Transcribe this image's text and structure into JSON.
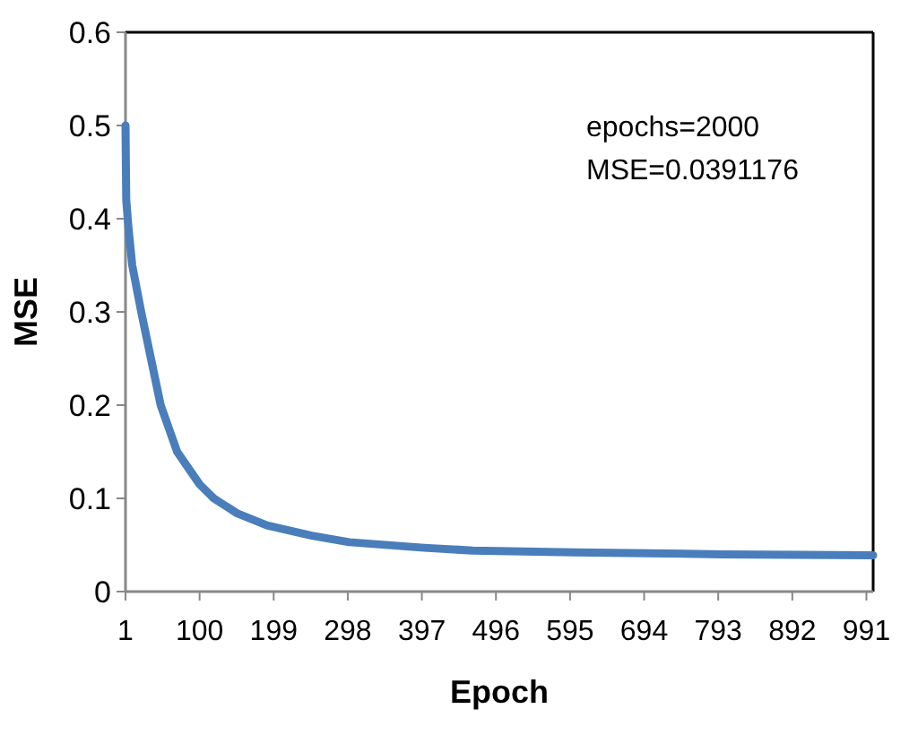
{
  "chart_data": {
    "type": "line",
    "xlabel": "Epoch",
    "ylabel": "MSE",
    "annotations": [
      "epochs=2000\nMSE=0.0391176"
    ],
    "xlim": [
      1,
      1000
    ],
    "xticks": [
      1,
      100,
      199,
      298,
      397,
      496,
      595,
      694,
      793,
      892,
      991
    ],
    "ylim": [
      0,
      0.6
    ],
    "yticks": [
      0,
      0.1,
      0.2,
      0.3,
      0.4,
      0.5,
      0.6
    ],
    "grid": false,
    "marker": "none",
    "line_style": "solid",
    "series": [
      {
        "color": "#4a7ebb",
        "x": [
          1,
          2,
          5,
          10,
          22,
          35,
          48,
          70,
          100,
          119,
          150,
          190,
          250,
          300,
          400,
          465,
          600,
          800,
          1000
        ],
        "values": [
          0.5,
          0.42,
          0.39,
          0.35,
          0.3,
          0.25,
          0.2,
          0.15,
          0.115,
          0.1,
          0.084,
          0.071,
          0.06,
          0.053,
          0.047,
          0.044,
          0.042,
          0.04,
          0.039
        ]
      }
    ]
  }
}
